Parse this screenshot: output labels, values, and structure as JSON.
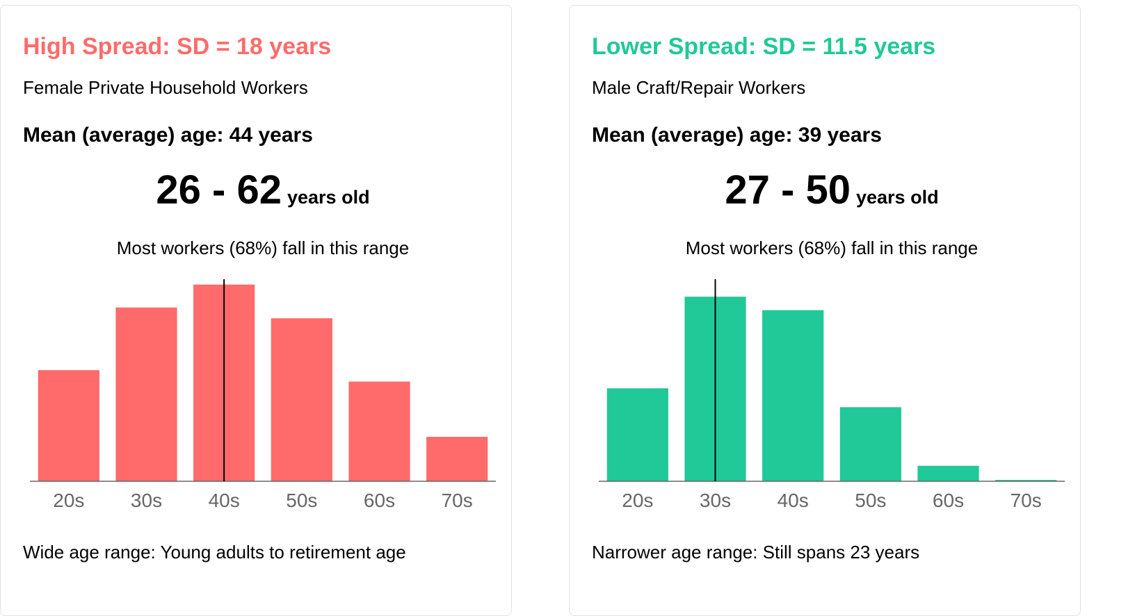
{
  "panels": [
    {
      "title": "High Spread: SD = 18 years",
      "subtitle": "Female Private Household Workers",
      "mean_text": "Mean (average) age: 44 years",
      "range_value": "26 - 62",
      "range_unit": "years old",
      "range_note": "Most workers (68%) fall in this range",
      "footer": "Wide age range: Young adults to retirement age",
      "color": "#ff6b6b"
    },
    {
      "title": "Lower Spread: SD = 11.5 years",
      "subtitle": "Male Craft/Repair Workers",
      "mean_text": "Mean (average) age: 39 years",
      "range_value": "27 - 50",
      "range_unit": "years old",
      "range_note": "Most workers (68%) fall in this range",
      "footer": "Narrower age range: Still spans 23 years",
      "color": "#20c997"
    }
  ],
  "chart_data": [
    {
      "type": "bar",
      "categories": [
        "20s",
        "30s",
        "40s",
        "50s",
        "60s",
        "70s"
      ],
      "values": [
        16.5,
        25.8,
        29.2,
        24.2,
        14.8,
        6.6
      ],
      "ylim": [
        0,
        30
      ],
      "mean_line_category": "40s",
      "color": "#ff6b6b",
      "grid": false
    },
    {
      "type": "bar",
      "categories": [
        "20s",
        "30s",
        "40s",
        "50s",
        "60s",
        "70s"
      ],
      "values": [
        13.8,
        27.4,
        25.4,
        11.0,
        2.3,
        0.2
      ],
      "ylim": [
        0,
        30
      ],
      "mean_line_category": "30s",
      "color": "#20c997",
      "grid": false
    }
  ]
}
